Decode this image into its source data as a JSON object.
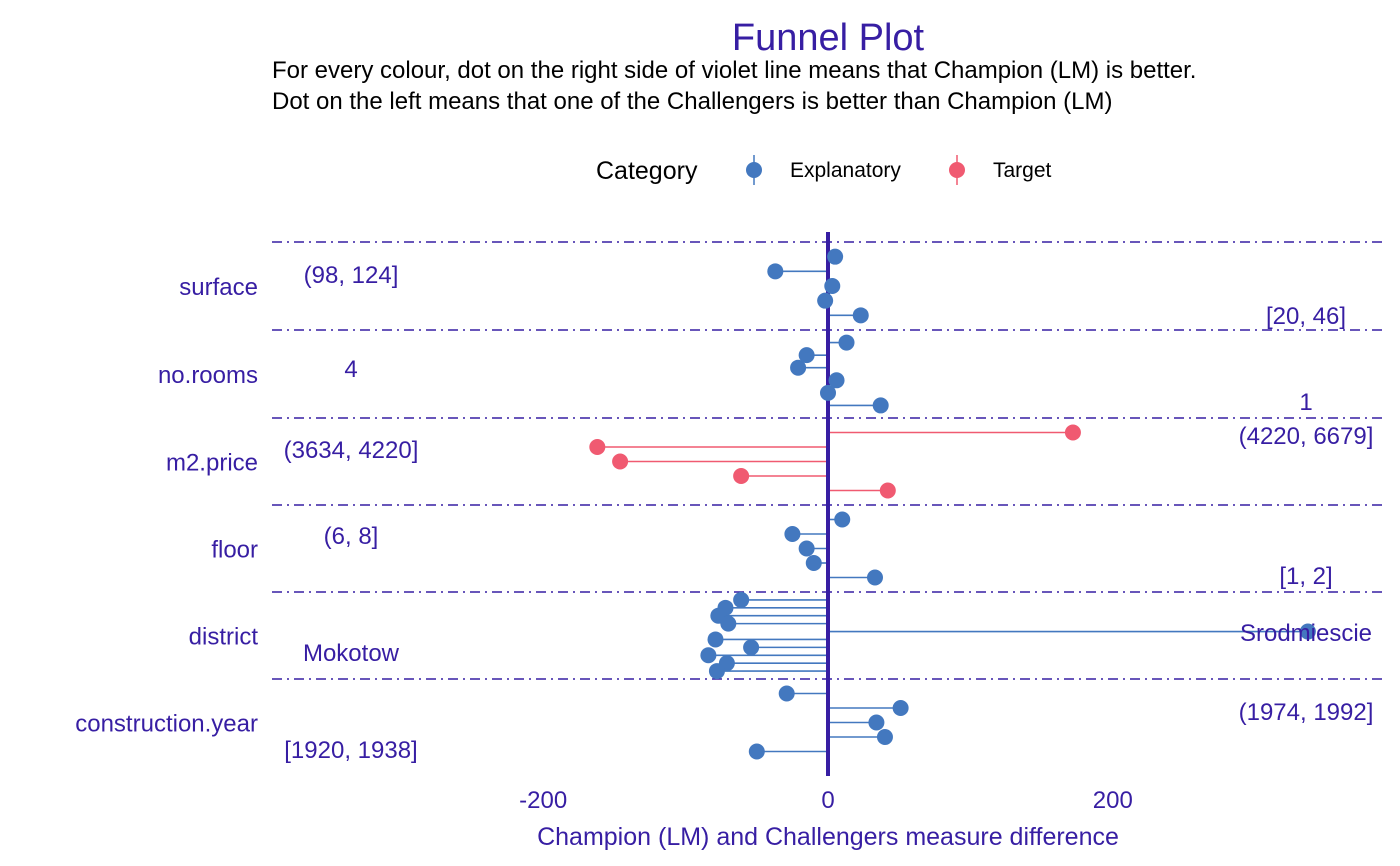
{
  "colors": {
    "accent": "#371ea3",
    "explanatory": "#4378bf",
    "target": "#f05a71",
    "text_dark": "#000000"
  },
  "chart_data": {
    "type": "scatter",
    "title": "Funnel Plot",
    "subtitle": [
      "For every colour, dot on the right side of violet line means that Champion (LM) is better.",
      "Dot on the left means that one of the Challengers is better than Champion (LM)"
    ],
    "xlabel": "Champion (LM) and Challengers measure difference",
    "ylabel": "",
    "xlim": [
      -390,
      390
    ],
    "x_ticks": [
      -200,
      0,
      200
    ],
    "x_tick_labels": [
      "-200",
      "0",
      "200"
    ],
    "reference_line": 0,
    "legend": {
      "title": "Category",
      "position": "top",
      "entries": [
        {
          "label": "Explanatory",
          "color_key": "explanatory"
        },
        {
          "label": "Target",
          "color_key": "target"
        }
      ]
    },
    "grid": false,
    "variables": [
      {
        "name": "surface",
        "category": "Explanatory",
        "values": [
          5,
          -37,
          3,
          -2,
          23
        ],
        "left_label": "(98, 124]",
        "right_label": "[20, 46]"
      },
      {
        "name": "no.rooms",
        "category": "Explanatory",
        "values": [
          13,
          -15,
          -21,
          6,
          0,
          37
        ],
        "left_label": "4",
        "right_label": "1"
      },
      {
        "name": "m2.price",
        "category": "Target",
        "values": [
          172,
          -162,
          -146,
          -61,
          42
        ],
        "left_label": "(3634, 4220]",
        "right_label": "(4220, 6679]"
      },
      {
        "name": "floor",
        "category": "Explanatory",
        "values": [
          10,
          -25,
          -15,
          -10,
          33
        ],
        "left_label": "(6, 8]",
        "right_label": "[1, 2]"
      },
      {
        "name": "district",
        "category": "Explanatory",
        "values": [
          -61,
          -72,
          -77,
          -70,
          337,
          -79,
          -54,
          -84,
          -71,
          -78
        ],
        "left_label": "Mokotow",
        "right_label": "Srodmiescie"
      },
      {
        "name": "construction.year",
        "category": "Explanatory",
        "values": [
          -29,
          51,
          34,
          40,
          -50
        ],
        "left_label": "[1920, 1938]",
        "right_label": "(1974, 1992]"
      }
    ]
  }
}
